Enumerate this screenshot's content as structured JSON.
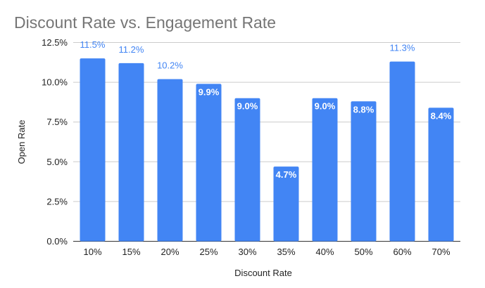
{
  "chart_data": {
    "type": "bar",
    "title": "Discount Rate vs. Engagement Rate",
    "xlabel": "Discount Rate",
    "ylabel": "Open Rate",
    "categories": [
      "10%",
      "15%",
      "20%",
      "25%",
      "30%",
      "35%",
      "40%",
      "50%",
      "60%",
      "70%"
    ],
    "values": [
      11.5,
      11.2,
      10.2,
      9.9,
      9.0,
      4.7,
      9.0,
      8.8,
      11.3,
      8.4
    ],
    "data_labels": [
      "11.5%",
      "11.2%",
      "10.2%",
      "9.9%",
      "9.0%",
      "4.7%",
      "9.0%",
      "8.8%",
      "11.3%",
      "8.4%"
    ],
    "label_outside": [
      true,
      true,
      true,
      false,
      false,
      false,
      false,
      false,
      true,
      false
    ],
    "ylim": [
      0,
      12.5
    ],
    "yticks": [
      0,
      2.5,
      5,
      7.5,
      10,
      12.5
    ],
    "ytick_labels": [
      "0.0%",
      "2.5%",
      "5.0%",
      "7.5%",
      "10.0%",
      "12.5%"
    ],
    "grid": true,
    "legend": "none",
    "colors": {
      "bar": "#4285f4",
      "label_outside": "#4285f4",
      "label_inside": "#ffffff",
      "grid": "#cccccc"
    }
  }
}
